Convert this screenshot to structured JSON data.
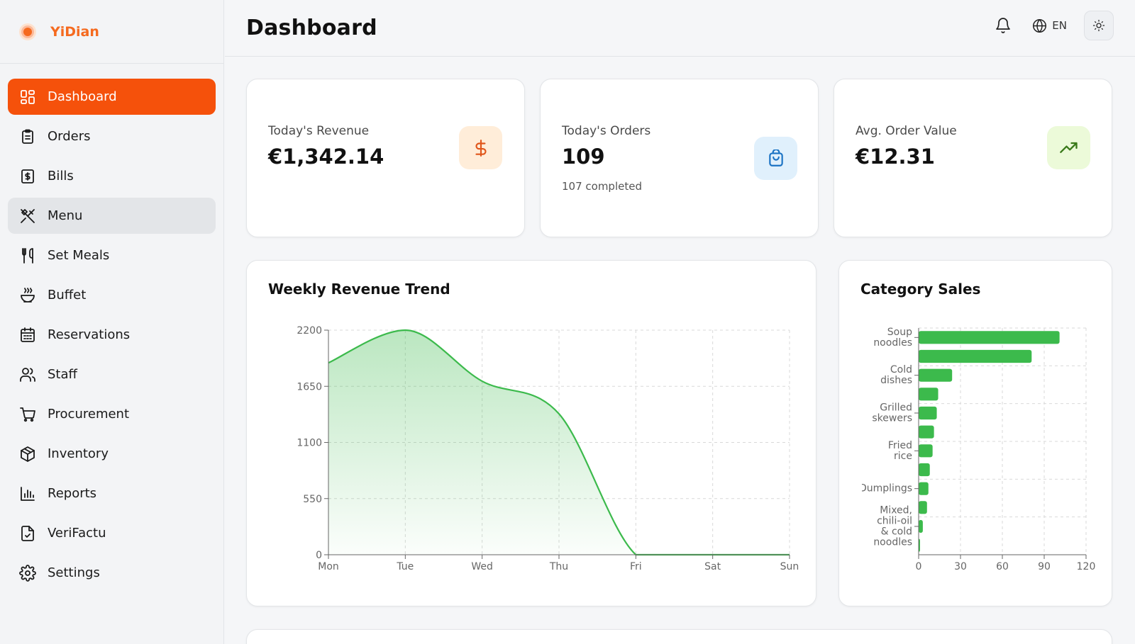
{
  "brand": {
    "name": "YiDian",
    "accent": "#f5510b"
  },
  "sidebar": {
    "items": [
      {
        "label": "Dashboard",
        "icon": "dashboard-grid-icon",
        "state": "active"
      },
      {
        "label": "Orders",
        "icon": "clipboard-icon",
        "state": ""
      },
      {
        "label": "Bills",
        "icon": "receipt-dollar-icon",
        "state": ""
      },
      {
        "label": "Menu",
        "icon": "utensils-crossed-icon",
        "state": "hover"
      },
      {
        "label": "Set Meals",
        "icon": "utensils-icon",
        "state": ""
      },
      {
        "label": "Buffet",
        "icon": "soup-bowl-icon",
        "state": ""
      },
      {
        "label": "Reservations",
        "icon": "calendar-icon",
        "state": ""
      },
      {
        "label": "Staff",
        "icon": "users-icon",
        "state": ""
      },
      {
        "label": "Procurement",
        "icon": "shopping-cart-icon",
        "state": ""
      },
      {
        "label": "Inventory",
        "icon": "package-icon",
        "state": ""
      },
      {
        "label": "Reports",
        "icon": "bar-chart-icon",
        "state": ""
      },
      {
        "label": "VeriFactu",
        "icon": "file-check-icon",
        "state": ""
      },
      {
        "label": "Settings",
        "icon": "gear-icon",
        "state": ""
      }
    ]
  },
  "header": {
    "title": "Dashboard",
    "language": "EN",
    "notifications_icon": "bell-icon",
    "theme_icon": "sun-icon"
  },
  "stats": [
    {
      "label": "Today's Revenue",
      "value": "€1,342.14",
      "sub": "",
      "icon": "dollar-icon",
      "icon_bg": "#ffedd9",
      "icon_color": "#e0561b"
    },
    {
      "label": "Today's Orders",
      "value": "109",
      "sub": "107 completed",
      "icon": "shopping-bag-icon",
      "icon_bg": "#e0f0fc",
      "icon_color": "#1b73c4"
    },
    {
      "label": "Avg. Order Value",
      "value": "€12.31",
      "sub": "",
      "icon": "trending-up-icon",
      "icon_bg": "#ecfad9",
      "icon_color": "#3a7a1a"
    }
  ],
  "charts": {
    "weekly": {
      "title": "Weekly Revenue Trend"
    },
    "category": {
      "title": "Category Sales"
    }
  },
  "chart_data": [
    {
      "type": "area",
      "title": "Weekly Revenue Trend",
      "categories": [
        "Mon",
        "Tue",
        "Wed",
        "Thu",
        "Fri",
        "Sat",
        "Sun"
      ],
      "values": [
        1880,
        2200,
        1700,
        1380,
        0,
        0,
        0
      ],
      "yticks": [
        0,
        550,
        1100,
        1650,
        2200
      ],
      "ylim": [
        0,
        2200
      ],
      "grid": true,
      "color": "#3cba4c"
    },
    {
      "type": "bar",
      "orientation": "horizontal",
      "title": "Category Sales",
      "categories": [
        "Soup noodles",
        "",
        "Cold dishes",
        "",
        "Grilled skewers",
        "",
        "Fried rice",
        "",
        "Dumplings",
        "",
        "Mixed, chili-oil & cold noodles",
        ""
      ],
      "values": [
        101,
        81,
        24,
        14,
        13,
        11,
        10,
        8,
        7,
        6,
        3,
        1
      ],
      "xticks": [
        0,
        30,
        60,
        90,
        120
      ],
      "xlim": [
        0,
        120
      ],
      "grid": true,
      "color": "#3cba4c"
    }
  ]
}
